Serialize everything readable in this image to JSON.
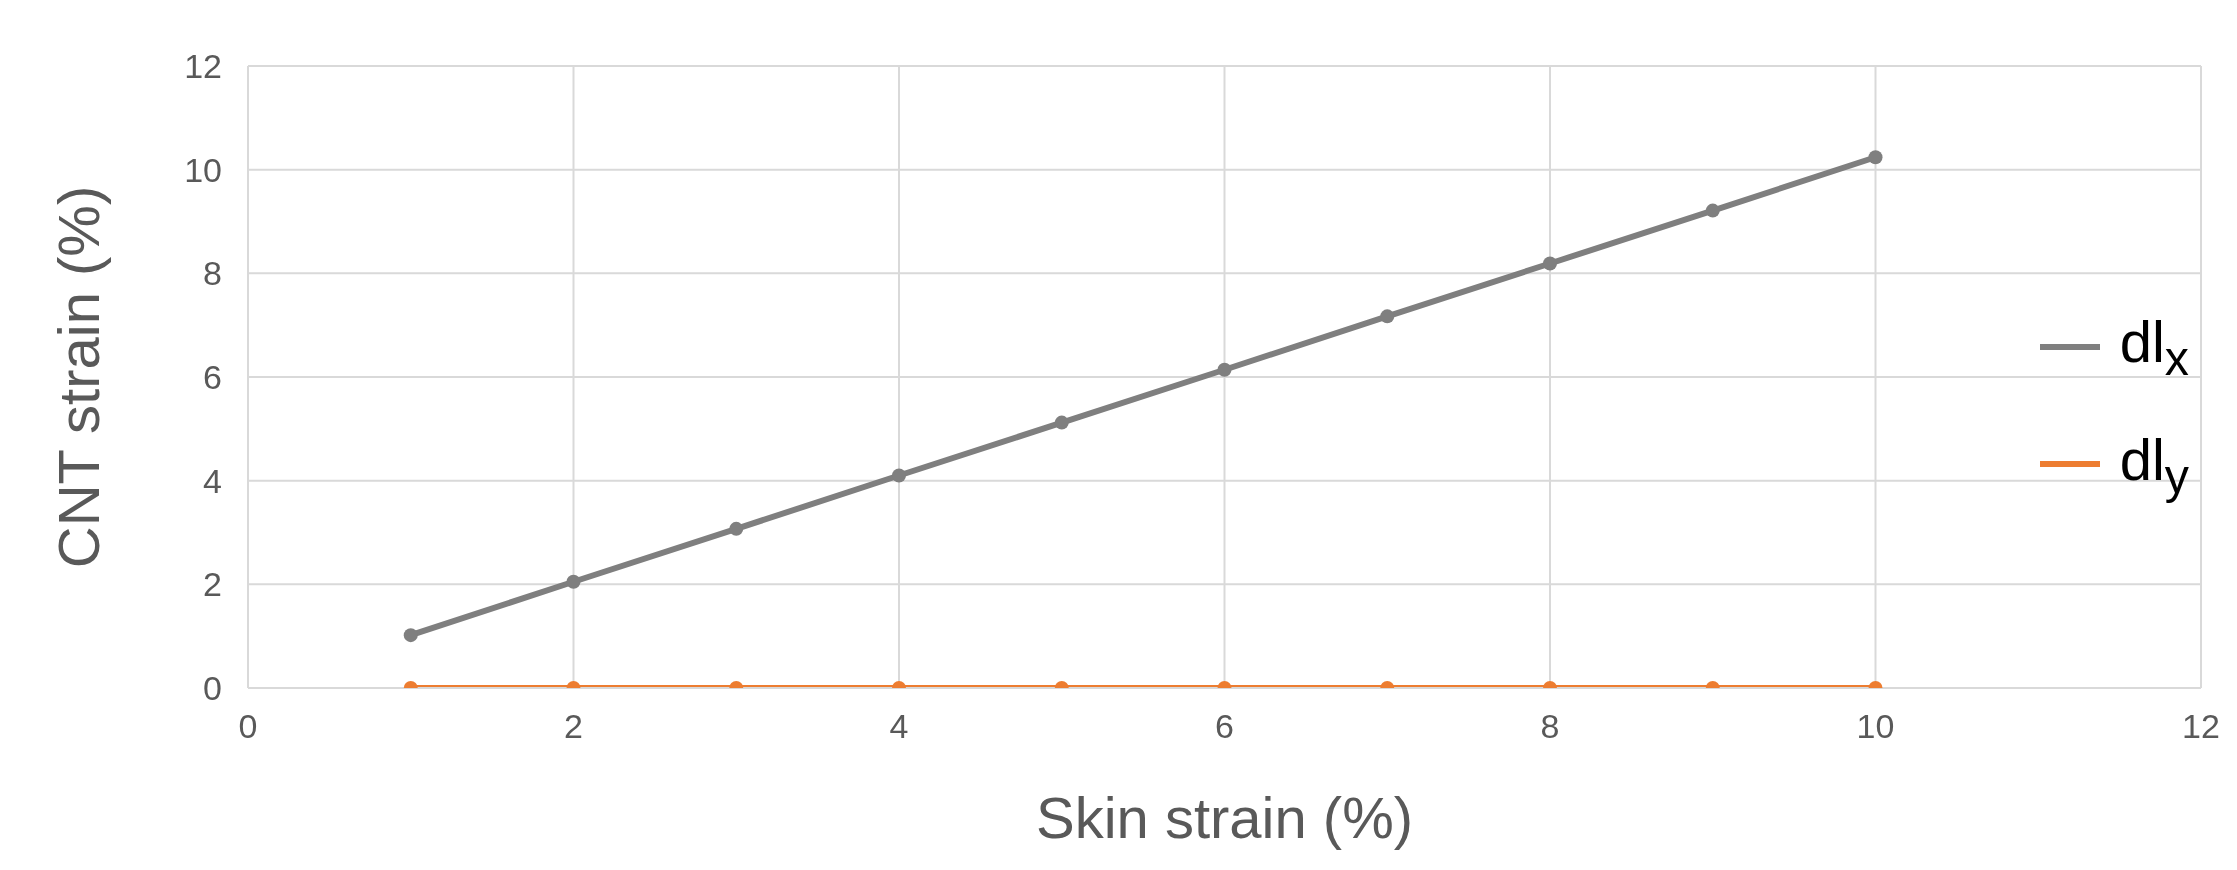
{
  "chart_data": {
    "type": "line",
    "xlabel": "Skin strain (%)",
    "ylabel": "CNT strain (%)",
    "x": [
      1,
      2,
      3,
      4,
      5,
      6,
      7,
      8,
      9,
      10
    ],
    "series": [
      {
        "name": "dl$_{x}$",
        "color": "#7f7f7f",
        "values": [
          1.02,
          2.05,
          3.07,
          4.1,
          5.12,
          6.14,
          7.17,
          8.19,
          9.21,
          10.24
        ]
      },
      {
        "name": "dl$_{y}$",
        "color": "#ed7d31",
        "values": [
          0,
          0,
          0,
          0,
          0,
          0,
          0,
          0,
          0,
          0
        ]
      }
    ],
    "xlim": [
      0,
      12
    ],
    "xticks": [
      0,
      2,
      4,
      6,
      8,
      10,
      12
    ],
    "ylim": [
      0,
      12
    ],
    "yticks": [
      0,
      2,
      4,
      6,
      8,
      10,
      12
    ],
    "grid": true,
    "legend": "right",
    "marker": "circle",
    "line_style": "solid"
  }
}
